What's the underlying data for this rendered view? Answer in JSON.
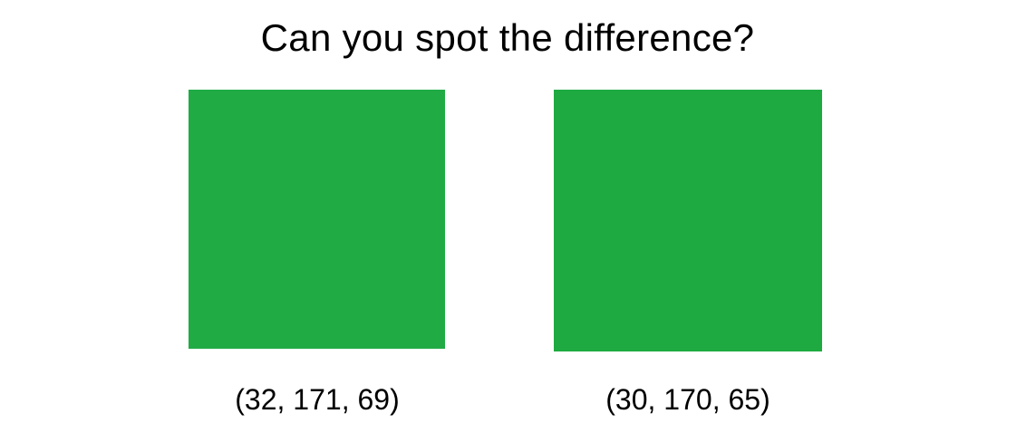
{
  "title": "Can you spot the difference?",
  "swatches": [
    {
      "color": "#20AB45",
      "label": "(32, 171, 69)"
    },
    {
      "color": "#1EAA41",
      "label": "(30, 170, 65)"
    }
  ]
}
